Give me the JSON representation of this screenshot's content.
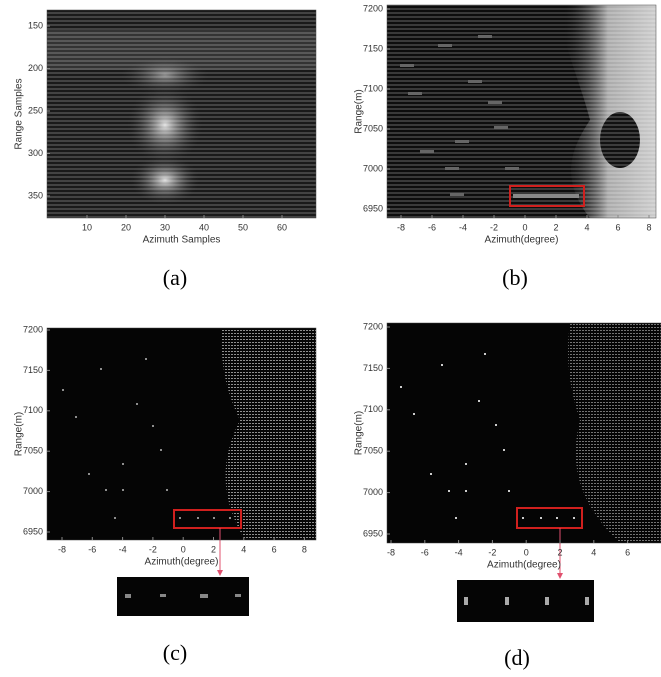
{
  "panels": [
    {
      "caption": "(a)",
      "xlabel": "Azimuth Samples",
      "ylabel": "Range Samples",
      "xticks": [
        10,
        20,
        30,
        40,
        50,
        60
      ],
      "yticks": [
        150,
        200,
        250,
        300,
        350
      ]
    },
    {
      "caption": "(b)",
      "xlabel": "Azimuth(degree)",
      "ylabel": "Range(m)",
      "xticks": [
        -8,
        -6,
        -4,
        -2,
        0,
        2,
        4,
        6,
        8
      ],
      "yticks": [
        7200,
        7150,
        7100,
        7050,
        7000,
        6950
      ]
    },
    {
      "caption": "(c)",
      "xlabel": "Azimuth(degree)",
      "ylabel": "Range(m)",
      "xticks": [
        -8,
        -6,
        -4,
        -2,
        0,
        2,
        4,
        6,
        8
      ],
      "yticks": [
        7200,
        7150,
        7100,
        7050,
        7000,
        6950
      ]
    },
    {
      "caption": "(d)",
      "xlabel": "Azimuth(degree)",
      "ylabel": "Range(m)",
      "xticks": [
        -8,
        -6,
        -4,
        -2,
        0,
        2,
        4,
        6
      ],
      "yticks": [
        7200,
        7150,
        7100,
        7050,
        7000,
        6950
      ]
    }
  ]
}
